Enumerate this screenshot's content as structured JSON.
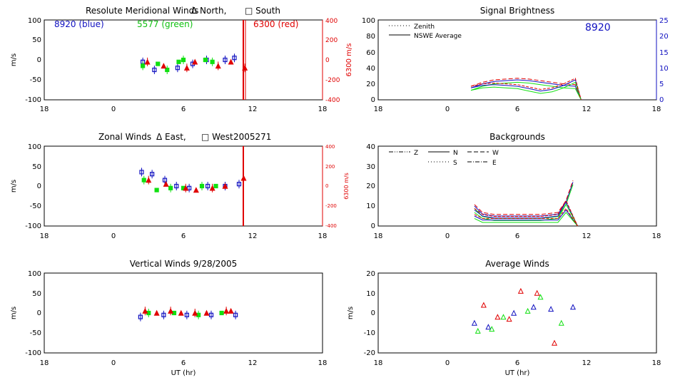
{
  "panels": {
    "meridional": {
      "title": "Resolute Meridional Winds",
      "legend_north": "Δ North,",
      "legend_south": "□ South",
      "tag_blue": "8920 (blue)",
      "tag_green": "5577 (green)",
      "tag_red": "6300 (red)",
      "ylabel": "m/s",
      "y2label": "6300 m/s",
      "yticks": [
        "100",
        "50",
        "0",
        "-50",
        "-100"
      ],
      "y2ticks": [
        "400",
        "200",
        "0",
        "-200",
        "-400"
      ]
    },
    "signal": {
      "title": "Signal Brightness",
      "legend_zenith": "Zenith",
      "legend_avg": "NSWE Average",
      "wavelength": "8920",
      "yticks": [
        "100",
        "80",
        "60",
        "40",
        "20",
        "0"
      ],
      "y2ticks": [
        "25",
        "20",
        "15",
        "10",
        "5",
        "0"
      ]
    },
    "zonal": {
      "title": "Zonal Winds",
      "legend_east": "Δ East,",
      "legend_west": "□ West",
      "date_code": "2005271",
      "ylabel": "m/s",
      "y2label": "6300 m/s",
      "yticks": [
        "100",
        "50",
        "0",
        "-50",
        "-100"
      ],
      "y2ticks": [
        "400",
        "200",
        "0",
        "-200",
        "-400"
      ]
    },
    "backgrounds": {
      "title": "Backgrounds",
      "legend": [
        "Z",
        "N",
        "W",
        "S",
        "E"
      ],
      "yticks": [
        "40",
        "30",
        "20",
        "10",
        "0"
      ]
    },
    "vertical": {
      "title": "Vertical Winds 9/28/2005",
      "ylabel": "m/s",
      "xlabel": "UT (hr)",
      "yticks": [
        "100",
        "50",
        "0",
        "-50",
        "-100"
      ]
    },
    "average": {
      "title": "Average Winds",
      "ylabel": "m/s",
      "xlabel": "UT (hr)",
      "yticks": [
        "20",
        "10",
        "0",
        "-10",
        "-20"
      ]
    }
  },
  "xticks": [
    "18",
    "0",
    "6",
    "12",
    "18"
  ],
  "colors": {
    "blue": "#1010c0",
    "green": "#10e010",
    "red": "#e00000",
    "black": "#000000"
  },
  "chart_data": [
    {
      "type": "scatter",
      "title": "Resolute Meridional Winds",
      "ylabel": "m/s",
      "xlim": [
        -6,
        18
      ],
      "ylim": [
        -100,
        100
      ],
      "y2lim": [
        -400,
        400
      ],
      "series": [
        {
          "name": "8920 (blue)",
          "x": [
            2.5,
            3.5,
            5.5,
            6.8,
            8.0,
            9.6,
            10.4
          ],
          "y": [
            -5,
            -25,
            -20,
            -10,
            0,
            0,
            5
          ]
        },
        {
          "name": "5577 (green)",
          "x": [
            2.5,
            3.8,
            4.6,
            5.6,
            6.0,
            7.9,
            8.5
          ],
          "y": [
            -15,
            -10,
            -25,
            -5,
            0,
            0,
            -5
          ]
        },
        {
          "name": "6300 (red)",
          "x": [
            2.9,
            4.3,
            6.3,
            7.0,
            9.0,
            10.1,
            11.3
          ],
          "y": [
            -5,
            -15,
            -20,
            -5,
            -15,
            -5,
            -20
          ]
        }
      ]
    },
    {
      "type": "line",
      "title": "Signal Brightness",
      "xlim": [
        -6,
        18
      ],
      "ylim": [
        0,
        100
      ],
      "y2lim": [
        0,
        25
      ],
      "series": [
        {
          "name": "Zenith",
          "x": [
            2,
            3,
            4,
            5,
            6,
            7,
            8,
            9,
            10,
            11,
            11.5
          ],
          "y": [
            15,
            20,
            23,
            24,
            25,
            24,
            22,
            20,
            18,
            17,
            0
          ]
        },
        {
          "name": "NSWE Average",
          "x": [
            2,
            3,
            4,
            5,
            6,
            7,
            8,
            9,
            10,
            11,
            11.5
          ],
          "y": [
            15,
            18,
            19,
            18,
            17,
            14,
            11,
            13,
            18,
            25,
            0
          ]
        }
      ]
    },
    {
      "type": "scatter",
      "title": "Zonal Winds",
      "ylabel": "m/s",
      "xlim": [
        -6,
        18
      ],
      "ylim": [
        -100,
        100
      ],
      "y2lim": [
        -400,
        400
      ],
      "series": [
        {
          "name": "8920 (blue)",
          "x": [
            2.4,
            3.3,
            4.4,
            5.4,
            6.5,
            8.1,
            9.6,
            10.8
          ],
          "y": [
            35,
            30,
            15,
            0,
            -5,
            0,
            0,
            5
          ]
        },
        {
          "name": "5577 (green)",
          "x": [
            2.6,
            3.7,
            4.9,
            6.0,
            7.6,
            8.8
          ],
          "y": [
            15,
            -10,
            -5,
            -5,
            0,
            0
          ]
        },
        {
          "name": "6300 (red)",
          "x": [
            3.0,
            4.5,
            6.2,
            7.1,
            8.5,
            9.6,
            11.2
          ],
          "y": [
            15,
            5,
            -5,
            -10,
            -5,
            0,
            20
          ]
        }
      ]
    },
    {
      "type": "line",
      "title": "Backgrounds",
      "xlim": [
        -6,
        18
      ],
      "ylim": [
        0,
        40
      ],
      "series": [
        {
          "name": "Z",
          "x": [
            2.3,
            3,
            4,
            6,
            8,
            9.5,
            10.2,
            10.8
          ],
          "y": [
            10,
            6,
            5,
            5,
            5,
            6,
            12,
            22
          ]
        },
        {
          "name": "N",
          "x": [
            2.3,
            3,
            4,
            6,
            8,
            9.5,
            10.2,
            11.2
          ],
          "y": [
            8,
            5,
            4,
            4,
            4,
            5,
            12,
            0
          ]
        },
        {
          "name": "S",
          "x": [
            2.3,
            3,
            4,
            6,
            8,
            9.5,
            10.2,
            11.2
          ],
          "y": [
            5,
            3,
            3,
            3,
            3,
            3,
            8,
            0
          ]
        }
      ]
    },
    {
      "type": "scatter",
      "title": "Vertical Winds 9/28/2005",
      "ylabel": "m/s",
      "xlabel": "UT (hr)",
      "xlim": [
        -6,
        18
      ],
      "ylim": [
        -100,
        100
      ],
      "series": [
        {
          "name": "8920 (blue)",
          "x": [
            2.3,
            4.3,
            6.3,
            8.4,
            10.5
          ],
          "y": [
            -10,
            -5,
            -5,
            -5,
            -5
          ]
        },
        {
          "name": "5577 (green)",
          "x": [
            3.0,
            5.2,
            7.3,
            9.3
          ],
          "y": [
            0,
            0,
            -5,
            0
          ]
        },
        {
          "name": "6300 (red)",
          "x": [
            2.7,
            3.7,
            4.9,
            5.8,
            7.0,
            8.0,
            9.7,
            10.1
          ],
          "y": [
            5,
            0,
            5,
            0,
            0,
            0,
            5,
            5
          ]
        }
      ]
    },
    {
      "type": "scatter",
      "title": "Average Winds",
      "ylabel": "m/s",
      "xlabel": "UT (hr)",
      "xlim": [
        -6,
        18
      ],
      "ylim": [
        -20,
        20
      ],
      "series": [
        {
          "name": "8920 (blue)",
          "x": [
            2.3,
            3.5,
            5.7,
            7.4,
            8.9,
            10.8
          ],
          "y": [
            -5,
            -7,
            0,
            3,
            2,
            3
          ]
        },
        {
          "name": "5577 (green)",
          "x": [
            2.6,
            3.8,
            4.8,
            6.9,
            8.0,
            9.8
          ],
          "y": [
            -9,
            -8,
            -2,
            1,
            8,
            -5
          ]
        },
        {
          "name": "6300 (red)",
          "x": [
            3.1,
            4.3,
            5.3,
            6.3,
            7.7,
            9.2
          ],
          "y": [
            4,
            -2,
            -3,
            11,
            10,
            -15
          ]
        }
      ]
    }
  ]
}
